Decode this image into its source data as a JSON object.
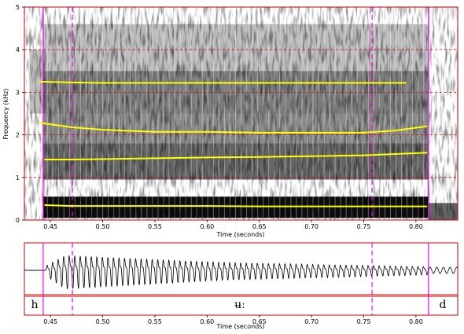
{
  "spectrogram": {
    "y_axis_label": "Frequency (kHz)",
    "x_axis_label": "Time (seconds)",
    "y_ticks": [
      "0",
      "1",
      "2",
      "3",
      "4",
      "5"
    ],
    "x_ticks": [
      "0.45",
      "0.50",
      "0.55",
      "0.60",
      "0.65",
      "0.70",
      "0.75",
      "0.80"
    ],
    "formant_color": "#ffff00"
  },
  "waveform": {
    "x_axis_label": "Time (seconds)",
    "x_ticks": [
      "0.45",
      "0.50",
      "0.55",
      "0.60",
      "0.65",
      "0.70",
      "0.75",
      "0.80"
    ]
  },
  "segments": [
    {
      "label": "h"
    },
    {
      "label": "ʉː"
    },
    {
      "label": "d"
    }
  ],
  "colors": {
    "frame": "#cc0000",
    "boundary": "#ff00ff",
    "grid": "#cc0000",
    "formant": "#ffff00",
    "waveform": "#000000"
  },
  "chart_data": {
    "type": "line",
    "xlabel": "Time (seconds)",
    "ylabel": "Frequency (kHz)",
    "xlim": [
      0.425,
      0.84
    ],
    "ylim": [
      0,
      5
    ],
    "grid": true,
    "series": [
      {
        "x": [
          0.44,
          0.47,
          0.5,
          0.55,
          0.6,
          0.65,
          0.7,
          0.75,
          0.79
        ],
        "values": [
          3.25,
          3.23,
          3.22,
          3.22,
          3.22,
          3.22,
          3.22,
          3.22,
          3.22
        ]
      },
      {
        "x": [
          0.44,
          0.47,
          0.5,
          0.55,
          0.6,
          0.65,
          0.7,
          0.75,
          0.78,
          0.81
        ],
        "values": [
          2.28,
          2.18,
          2.12,
          2.07,
          2.07,
          2.05,
          2.05,
          2.05,
          2.1,
          2.2
        ]
      },
      {
        "x": [
          0.445,
          0.47,
          0.5,
          0.55,
          0.6,
          0.65,
          0.7,
          0.75,
          0.78,
          0.81
        ],
        "values": [
          1.42,
          1.42,
          1.43,
          1.45,
          1.47,
          1.48,
          1.5,
          1.52,
          1.55,
          1.58
        ]
      },
      {
        "x": [
          0.445,
          0.47,
          0.5,
          0.55,
          0.6,
          0.65,
          0.7,
          0.75,
          0.81
        ],
        "values": [
          0.35,
          0.33,
          0.33,
          0.33,
          0.33,
          0.32,
          0.32,
          0.32,
          0.32
        ]
      }
    ],
    "boundaries": [
      {
        "time": 0.443,
        "style": "solid"
      },
      {
        "time": 0.471,
        "style": "dashed"
      },
      {
        "time": 0.758,
        "style": "dashed"
      },
      {
        "time": 0.812,
        "style": "solid"
      }
    ]
  }
}
